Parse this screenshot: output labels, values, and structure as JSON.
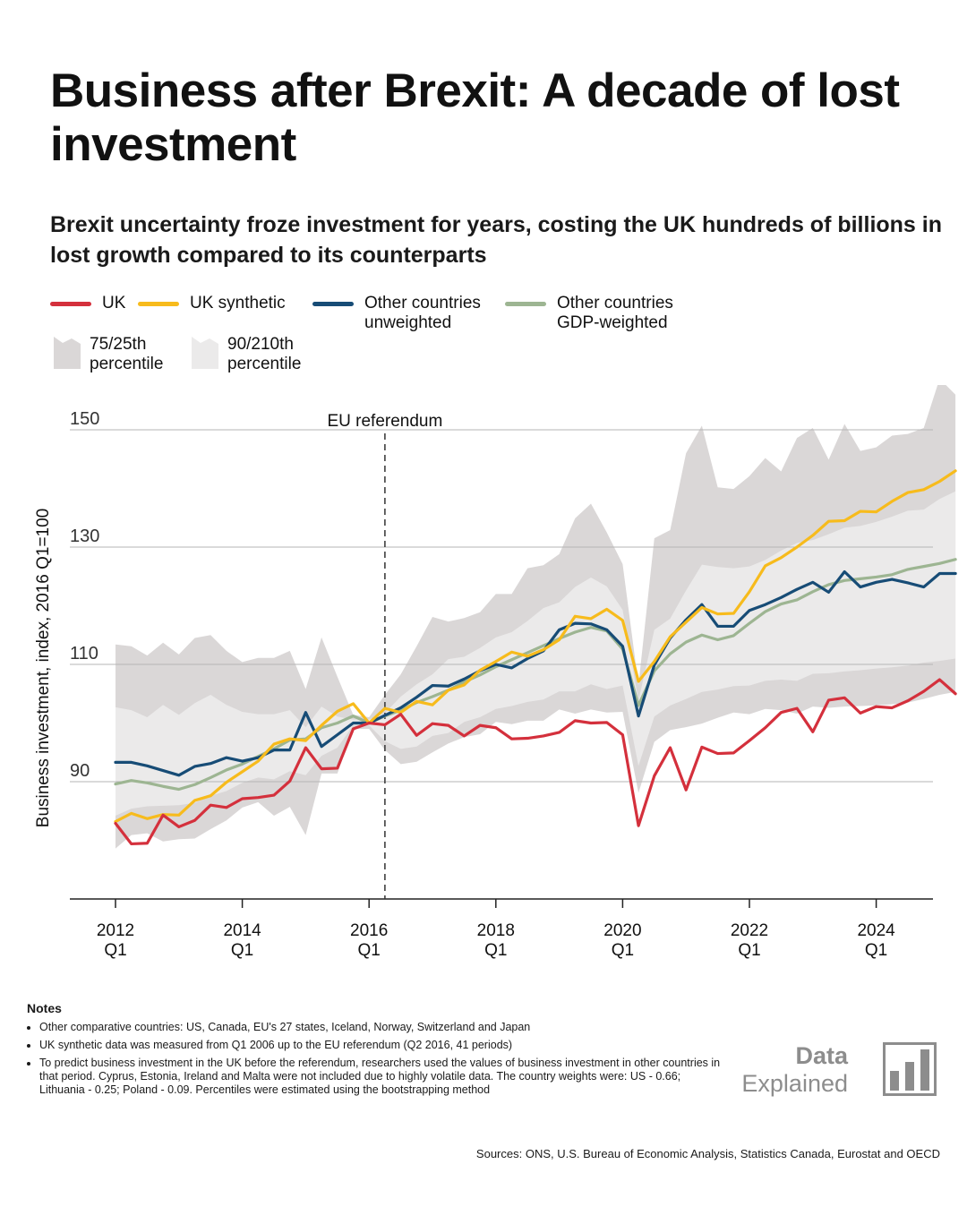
{
  "title": "Business after Brexit: A decade of lost investment",
  "subtitle": "Brexit uncertainty froze investment for years, costing the UK hundreds of billions in lost growth compared to its counterparts",
  "legend": {
    "uk": "UK",
    "uk_synthetic": "UK synthetic",
    "other_unweighted": "Other countries\nunweighted",
    "other_gdp": "Other countries\nGDP-weighted",
    "band_75": "75/25th\npercentile",
    "band_90": "90/210th\npercentile"
  },
  "colors": {
    "uk": "#d4303c",
    "uk_synthetic": "#f7bb1c",
    "other_unweighted": "#174c76",
    "other_gdp": "#9db592",
    "band_outer": "#dad7d7",
    "band_inner": "#ebeaea"
  },
  "notes": {
    "title": "Notes",
    "items": [
      "Other comparative countries: US, Canada, EU's 27 states, Iceland, Norway, Switzerland and Japan",
      "UK synthetic data was measured from Q1 2006 up to the EU referendum (Q2 2016, 41 periods)",
      "To predict business investment in the UK before the referendum, researchers used the values of business investment in other countries in that period. Cyprus, Estonia, Ireland and Malta were not included due to highly volatile data. The country weights were: US - 0.66; Lithuania - 0.25; Poland - 0.09. Percentiles were estimated using the bootstrapping method"
    ]
  },
  "logo": {
    "line1": "Data",
    "line2": "Explained"
  },
  "sources": "Sources: ONS, U.S. Bureau of Economic Analysis, Statistics Canada, Eurostat and OECD",
  "chart_data": {
    "type": "line",
    "ylabel": "Business investment, index, 2016 Q1=100",
    "y_ticks": [
      90,
      110,
      130,
      150
    ],
    "ylim": [
      78,
      158
    ],
    "x_start": "2012 Q1",
    "x_ticks": [
      {
        "year": "2012",
        "quarter": "Q1",
        "index": 0
      },
      {
        "year": "2014",
        "quarter": "Q1",
        "index": 8
      },
      {
        "year": "2016",
        "quarter": "Q1",
        "index": 16
      },
      {
        "year": "2018",
        "quarter": "Q1",
        "index": 24
      },
      {
        "year": "2020",
        "quarter": "Q1",
        "index": 32
      },
      {
        "year": "2022",
        "quarter": "Q1",
        "index": 40
      },
      {
        "year": "2024",
        "quarter": "Q1",
        "index": 48
      }
    ],
    "annotation": {
      "label": "EU referendum",
      "x": "2016 Q2"
    },
    "grid": "horizontal",
    "series": [
      {
        "name": "UK",
        "values": [
          82.9,
          79.4,
          79.5,
          84.3,
          82.3,
          83.4,
          86.0,
          85.6,
          87.1,
          87.3,
          87.7,
          90.1,
          95.8,
          92.2,
          92.3,
          99.0,
          100.0,
          99.7,
          101.5,
          97.9,
          99.9,
          99.6,
          97.8,
          99.6,
          99.2,
          97.3,
          97.4,
          97.8,
          98.4,
          100.4,
          100.0,
          100.1,
          98.0,
          82.5,
          91.0,
          95.8,
          88.6,
          95.9,
          94.8,
          94.9,
          97.0,
          99.2,
          101.8,
          102.5,
          98.5,
          103.9,
          104.3,
          101.7,
          102.8,
          102.6,
          103.8,
          105.4,
          107.4,
          105.0
        ]
      },
      {
        "name": "UK synthetic",
        "values": [
          83.2,
          84.6,
          83.7,
          84.4,
          84.3,
          86.8,
          87.6,
          89.9,
          91.7,
          93.5,
          96.4,
          97.3,
          97.0,
          99.6,
          102.0,
          103.3,
          100.0,
          102.5,
          101.8,
          103.7,
          103.1,
          105.6,
          106.5,
          109.0,
          110.5,
          112.1,
          111.4,
          112.5,
          114.2,
          118.2,
          117.8,
          119.4,
          117.5,
          107.1,
          110.5,
          114.7,
          117.2,
          119.7,
          118.6,
          118.7,
          122.4,
          126.8,
          128.2,
          130.0,
          132.0,
          134.4,
          134.5,
          136.1,
          136.0,
          137.8,
          139.3,
          139.8,
          141.2,
          143.0
        ]
      },
      {
        "name": "Other countries unweighted",
        "values": [
          93.3,
          93.3,
          92.7,
          91.9,
          91.1,
          92.6,
          93.1,
          94.1,
          93.5,
          94.1,
          95.4,
          95.4,
          101.8,
          96.0,
          98.0,
          100.0,
          100.0,
          101.3,
          102.6,
          104.4,
          106.4,
          106.3,
          107.5,
          108.9,
          110.0,
          109.4,
          111.0,
          112.3,
          115.9,
          117.0,
          116.9,
          115.9,
          113.1,
          101.2,
          109.9,
          114.5,
          117.6,
          120.2,
          116.5,
          116.5,
          119.2,
          120.2,
          121.4,
          122.8,
          124.0,
          122.3,
          125.8,
          123.2,
          124.0,
          124.5,
          123.9,
          123.2,
          125.5,
          125.5
        ]
      },
      {
        "name": "Other countries GDP-weighted",
        "values": [
          89.6,
          90.2,
          89.8,
          89.2,
          88.7,
          89.5,
          90.7,
          92.0,
          93.0,
          94.3,
          95.6,
          97.1,
          97.3,
          99.2,
          100.0,
          101.2,
          100.0,
          101.2,
          102.2,
          103.5,
          104.5,
          105.6,
          107.0,
          108.2,
          109.6,
          110.8,
          112.0,
          113.2,
          114.4,
          115.5,
          116.3,
          115.7,
          112.6,
          103.0,
          108.9,
          111.8,
          113.8,
          115.0,
          114.2,
          114.9,
          117.0,
          119.0,
          120.3,
          121.0,
          122.4,
          123.6,
          124.3,
          124.6,
          124.9,
          125.3,
          126.2,
          126.7,
          127.2,
          127.9
        ]
      }
    ],
    "bands": [
      {
        "name": "90/210th percentile",
        "upper": [
          113.4,
          113.1,
          111.5,
          113.7,
          111.7,
          114.5,
          115.0,
          112.3,
          110.4,
          111.1,
          111.1,
          112.3,
          105.8,
          114.6,
          107.9,
          101.4,
          101.0,
          104.8,
          108.3,
          113.1,
          118.1,
          117.3,
          117.9,
          118.9,
          122.0,
          122.0,
          126.4,
          126.9,
          128.8,
          134.9,
          137.4,
          132.5,
          127.1,
          106.5,
          131.5,
          132.9,
          146.0,
          150.7,
          140.2,
          139.9,
          142.1,
          145.2,
          142.9,
          148.6,
          150.3,
          144.9,
          151.0,
          146.4,
          147.0,
          149.0,
          149.3,
          150.3,
          158.7,
          156.0
        ],
        "lower": [
          78.6,
          80.9,
          81.2,
          79.8,
          80.2,
          80.3,
          81.9,
          83.4,
          85.6,
          86.5,
          84.2,
          85.7,
          80.9,
          91.4,
          91.4,
          99.0,
          99.0,
          95.4,
          93.0,
          93.4,
          95.0,
          96.5,
          97.6,
          98.1,
          100.2,
          99.8,
          100.4,
          100.4,
          102.3,
          101.6,
          102.3,
          101.8,
          101.9,
          88.1,
          96.8,
          98.8,
          99.3,
          99.9,
          100.9,
          101.8,
          101.5,
          102.4,
          102.2,
          101.6,
          102.8,
          102.6,
          102.8,
          102.9,
          103.0,
          103.2,
          103.5,
          104.1,
          104.8,
          105.3
        ]
      },
      {
        "name": "75/25th percentile",
        "upper": [
          102.7,
          102.2,
          101.0,
          103.1,
          101.4,
          103.4,
          104.8,
          103.1,
          101.9,
          101.5,
          101.5,
          102.2,
          99.3,
          102.8,
          101.1,
          100.6,
          100.6,
          101.7,
          104.5,
          106.6,
          108.3,
          110.9,
          111.3,
          112.8,
          114.6,
          115.5,
          117.4,
          119.6,
          120.6,
          123.2,
          124.8,
          123.3,
          119.3,
          103.8,
          115.9,
          117.8,
          122.6,
          127.0,
          126.6,
          126.4,
          126.7,
          127.8,
          129.4,
          130.7,
          131.2,
          132.2,
          133.3,
          133.6,
          134.3,
          135.2,
          136.2,
          136.4,
          138.2,
          139.5
        ],
        "lower": [
          84.2,
          85.4,
          85.8,
          85.9,
          86.0,
          86.4,
          87.6,
          88.4,
          89.8,
          90.7,
          90.4,
          91.8,
          91.1,
          94.4,
          95.8,
          99.6,
          99.6,
          96.9,
          95.6,
          96.0,
          97.8,
          98.3,
          100.2,
          101.0,
          102.4,
          102.9,
          103.6,
          104.0,
          105.4,
          105.4,
          106.6,
          105.8,
          106.4,
          92.7,
          101.1,
          103.0,
          104.1,
          105.3,
          105.7,
          106.3,
          106.4,
          107.2,
          107.4,
          107.2,
          108.4,
          108.5,
          108.8,
          109.0,
          109.3,
          109.5,
          109.8,
          110.3,
          110.6,
          111.0
        ]
      }
    ]
  }
}
